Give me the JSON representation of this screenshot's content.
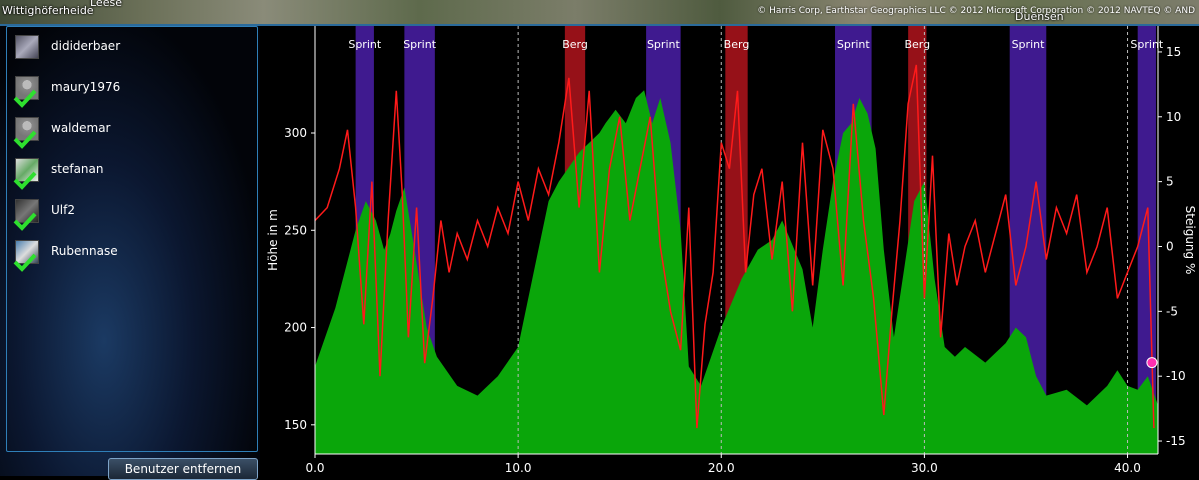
{
  "map": {
    "places": [
      "Wittighöferheide",
      "Leese",
      "Duensen"
    ],
    "attribution": "© Harris Corp, Earthstar Geographics LLC © 2012 Microsoft Corporation © 2012 NAVTEQ © AND"
  },
  "users": [
    {
      "name": "dididerbaer",
      "checked": false
    },
    {
      "name": "maury1976",
      "checked": true
    },
    {
      "name": "waldemar",
      "checked": true
    },
    {
      "name": "stefanan",
      "checked": true
    },
    {
      "name": "Ulf2",
      "checked": true
    },
    {
      "name": "Rubennase",
      "checked": true
    }
  ],
  "remove_user_label": "Benutzer entfernen",
  "chart_data": {
    "type": "area",
    "ylabel_left": "Höhe in m",
    "ylabel_right": "Steigung %",
    "y_left_ticks": [
      150,
      200,
      250,
      300
    ],
    "y_left_range": [
      135,
      355
    ],
    "y_right_ticks": [
      15,
      10,
      5,
      0,
      -5,
      -10,
      -15
    ],
    "y_right_range": [
      -16,
      17
    ],
    "x_ticks": [
      "0.0",
      "10.0",
      "20.0",
      "30.0",
      "40.0"
    ],
    "x_tick_values": [
      0,
      10,
      20,
      30,
      40
    ],
    "x_range": [
      0,
      41.5
    ],
    "km_markers": [
      10,
      20,
      30,
      40
    ],
    "segments": [
      {
        "label": "Sprint",
        "type": "sprint",
        "start": 2.0,
        "end": 2.9
      },
      {
        "label": "Sprint",
        "type": "sprint",
        "start": 4.4,
        "end": 5.9
      },
      {
        "label": "Berg",
        "type": "berg",
        "start": 12.3,
        "end": 13.3
      },
      {
        "label": "Sprint",
        "type": "sprint",
        "start": 16.3,
        "end": 18.0
      },
      {
        "label": "Berg",
        "type": "berg",
        "start": 20.2,
        "end": 21.3
      },
      {
        "label": "Sprint",
        "type": "sprint",
        "start": 25.6,
        "end": 27.4
      },
      {
        "label": "Berg",
        "type": "berg",
        "start": 29.2,
        "end": 30.1
      },
      {
        "label": "Sprint",
        "type": "sprint",
        "start": 34.2,
        "end": 36.0
      },
      {
        "label": "Sprint",
        "type": "sprint",
        "start": 40.5,
        "end": 41.4
      }
    ],
    "elevation_series": {
      "x": [
        0,
        1,
        2,
        2.5,
        3,
        3.4,
        3.7,
        4,
        4.4,
        4.9,
        5.5,
        6,
        7,
        8,
        9,
        10,
        11,
        11.5,
        12,
        13,
        14,
        14.3,
        14.8,
        15.3,
        15.8,
        16.2,
        16.6,
        17,
        17.5,
        18,
        18.4,
        19,
        20,
        21,
        21.8,
        22.5,
        23,
        24,
        24.5,
        25,
        25.5,
        26,
        26.4,
        26.8,
        27.2,
        27.6,
        28,
        28.5,
        29,
        29.5,
        30,
        30.5,
        31,
        31.5,
        32,
        33,
        34,
        34.5,
        35,
        35.5,
        36,
        37,
        38,
        39,
        39.5,
        40,
        40.5,
        41,
        41.5
      ],
      "elevation": [
        180,
        210,
        250,
        265,
        255,
        240,
        248,
        260,
        272,
        240,
        200,
        185,
        170,
        165,
        175,
        190,
        240,
        265,
        275,
        290,
        300,
        305,
        312,
        305,
        318,
        322,
        305,
        318,
        295,
        250,
        180,
        170,
        200,
        225,
        240,
        245,
        255,
        230,
        200,
        240,
        275,
        300,
        305,
        318,
        310,
        292,
        240,
        195,
        230,
        265,
        275,
        225,
        190,
        185,
        190,
        182,
        192,
        200,
        195,
        175,
        165,
        168,
        160,
        170,
        178,
        170,
        168,
        175,
        160
      ]
    },
    "gradient_series": {
      "x": [
        0,
        0.6,
        1.2,
        1.6,
        2.0,
        2.4,
        2.8,
        3.2,
        3.6,
        4.0,
        4.3,
        4.6,
        5.0,
        5.4,
        5.8,
        6.2,
        6.6,
        7.0,
        7.5,
        8.0,
        8.5,
        9.0,
        9.5,
        10.0,
        10.5,
        11.0,
        11.5,
        12.0,
        12.5,
        13.0,
        13.5,
        14.0,
        14.5,
        15.0,
        15.5,
        16.0,
        16.5,
        17.0,
        17.5,
        18.0,
        18.4,
        18.8,
        19.2,
        19.6,
        20.0,
        20.4,
        20.8,
        21.2,
        21.6,
        22.0,
        22.5,
        23.0,
        23.5,
        24.0,
        24.5,
        25.0,
        25.5,
        26.0,
        26.5,
        27.0,
        27.5,
        28.0,
        28.4,
        28.8,
        29.2,
        29.6,
        30.0,
        30.4,
        30.8,
        31.2,
        31.6,
        32.0,
        32.5,
        33.0,
        33.5,
        34.0,
        34.5,
        35.0,
        35.5,
        36.0,
        36.5,
        37.0,
        37.5,
        38.0,
        38.5,
        39.0,
        39.5,
        40.0,
        40.5,
        41.0,
        41.3
      ],
      "gradient": [
        2,
        3,
        6,
        9,
        3,
        -6,
        5,
        -10,
        2,
        12,
        4,
        -7,
        3,
        -9,
        -4,
        2,
        -2,
        1,
        -1,
        2,
        0,
        3,
        1,
        5,
        2,
        6,
        4,
        8,
        13,
        3,
        12,
        -2,
        6,
        10,
        2,
        6,
        10,
        0,
        -5,
        -8,
        3,
        -14,
        -6,
        -2,
        8,
        6,
        12,
        -2,
        4,
        6,
        -1,
        5,
        -5,
        8,
        -3,
        9,
        6,
        -3,
        11,
        2,
        -4,
        -13,
        -5,
        2,
        11,
        14,
        -4,
        7,
        -7,
        1,
        -3,
        0,
        2,
        -2,
        1,
        4,
        -3,
        0,
        5,
        -1,
        3,
        1,
        4,
        -2,
        0,
        3,
        -4,
        -2,
        0,
        3,
        -14
      ]
    }
  }
}
